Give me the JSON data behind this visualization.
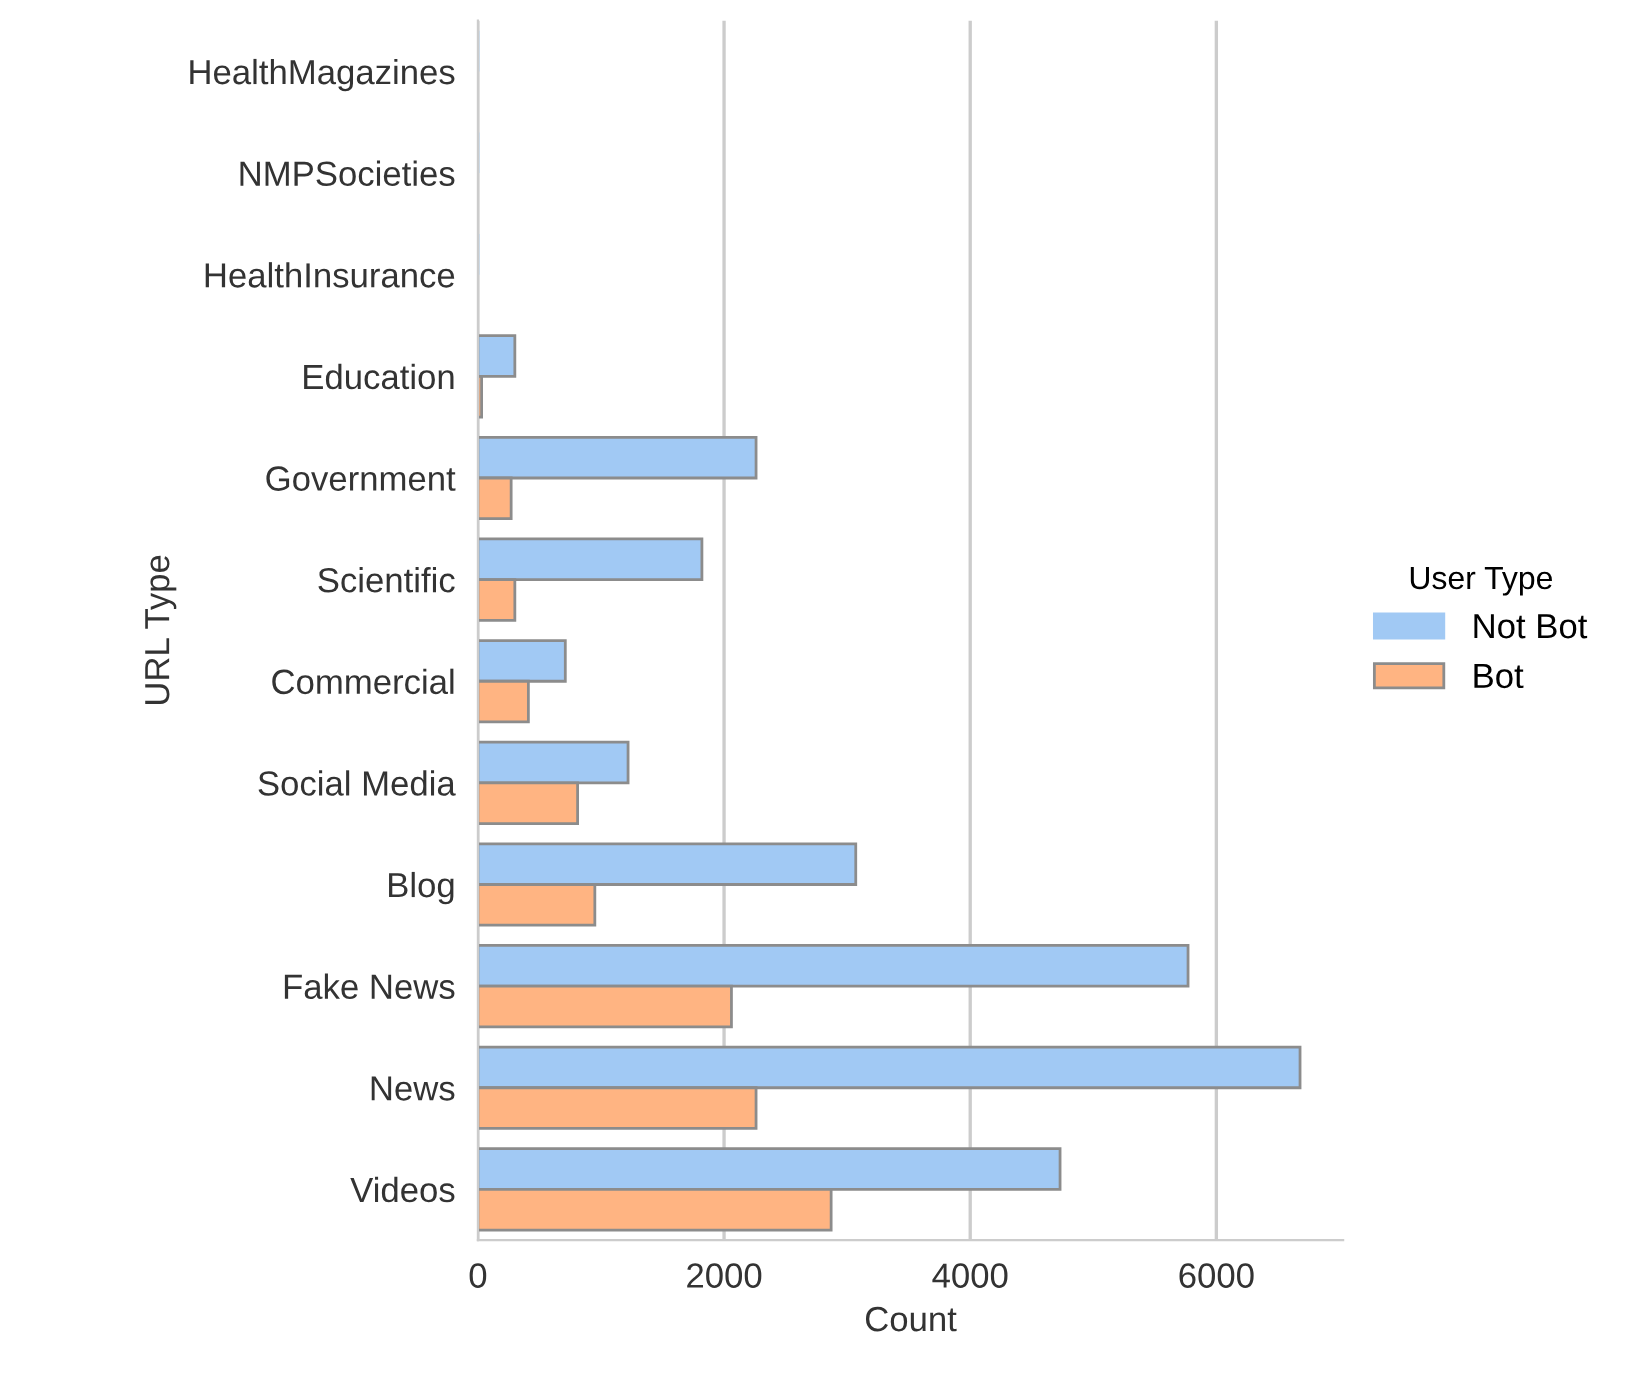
{
  "chart_data": {
    "type": "bar",
    "orientation": "horizontal",
    "xlabel": "Count",
    "ylabel": "URL Type",
    "legend_title": "User Type",
    "legend": "right",
    "categories": [
      "HealthMagazines",
      "NMPSocieties",
      "HealthInsurance",
      "Education",
      "Government",
      "Scientific",
      "Commercial",
      "Social Media",
      "Blog",
      "Fake News",
      "News",
      "Videos"
    ],
    "series": [
      {
        "name": "Not Bot",
        "color": "#a1c9f4",
        "values": [
          0,
          0,
          0,
          300,
          2260,
          1820,
          710,
          1220,
          3070,
          5770,
          6680,
          4730
        ]
      },
      {
        "name": "Bot",
        "color": "#ffb482",
        "values": [
          null,
          null,
          null,
          30,
          270,
          300,
          410,
          810,
          950,
          2060,
          2260,
          2870
        ]
      }
    ],
    "xlim": [
      0,
      7030
    ],
    "xticks": [
      0,
      2000,
      4000,
      6000
    ],
    "grid": "x"
  }
}
